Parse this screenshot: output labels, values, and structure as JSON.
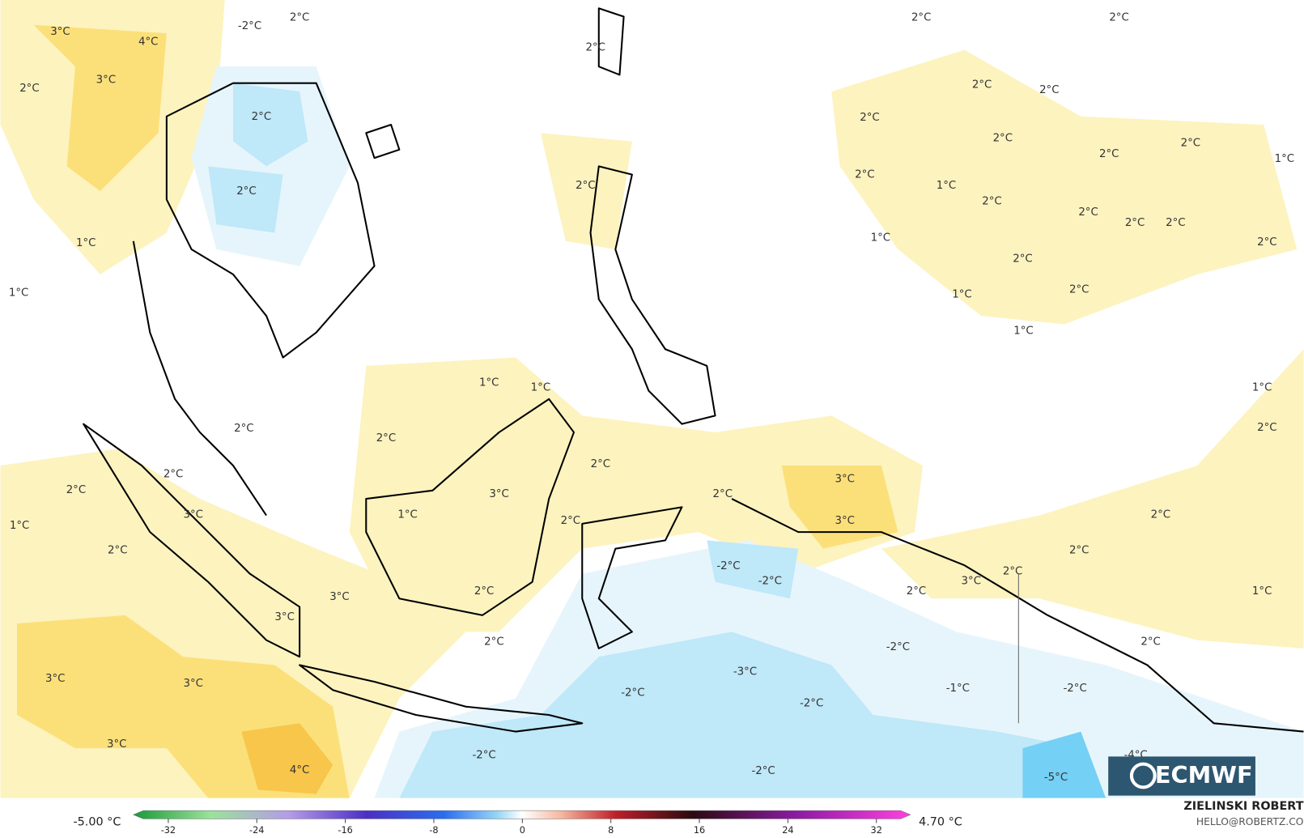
{
  "map": {
    "contour_labels": [
      "3°C",
      "4°C",
      "3°C",
      "2°C",
      "2°C",
      "2°C",
      "1°C",
      "1°C",
      "-2°C",
      "2°C",
      "2°C",
      "2°C",
      "2°C",
      "2°C",
      "2°C",
      "2°C",
      "2°C",
      "2°C",
      "2°C",
      "2°C",
      "1°C",
      "2°C",
      "1°C",
      "2°C",
      "2°C",
      "2°C",
      "2°C",
      "2°C",
      "1°C",
      "2°C",
      "1°C",
      "2°C",
      "1°C",
      "1°C",
      "2°C",
      "1°C",
      "1°C",
      "2°C",
      "2°C",
      "2°C",
      "2°C",
      "2°C",
      "1°C",
      "3°C",
      "2°C",
      "3°C",
      "1°C",
      "2°C",
      "2°C",
      "3°C",
      "3°C",
      "2°C",
      "2°C",
      "2°C",
      "3°C",
      "2°C",
      "1°C",
      "-2°C",
      "-2°C",
      "3°C",
      "3°C",
      "2°C",
      "2°C",
      "3°C",
      "3°C",
      "3°C",
      "4°C",
      "-2°C",
      "-3°C",
      "-2°C",
      "-2°C",
      "-1°C",
      "-2°C",
      "2°C",
      "-2°C",
      "-2°C",
      "-4°C",
      "-5°C"
    ]
  },
  "colorbar": {
    "min_label": "-5.00 °C",
    "max_label": "4.70 °C",
    "ticks": [
      -32,
      -24,
      -16,
      -8,
      0,
      8,
      16,
      24,
      32
    ]
  },
  "credits": {
    "author": "ZIELINSKI ROBERT",
    "email": "HELLO@ROBERTZ.CO"
  },
  "logo": "ECMWF"
}
